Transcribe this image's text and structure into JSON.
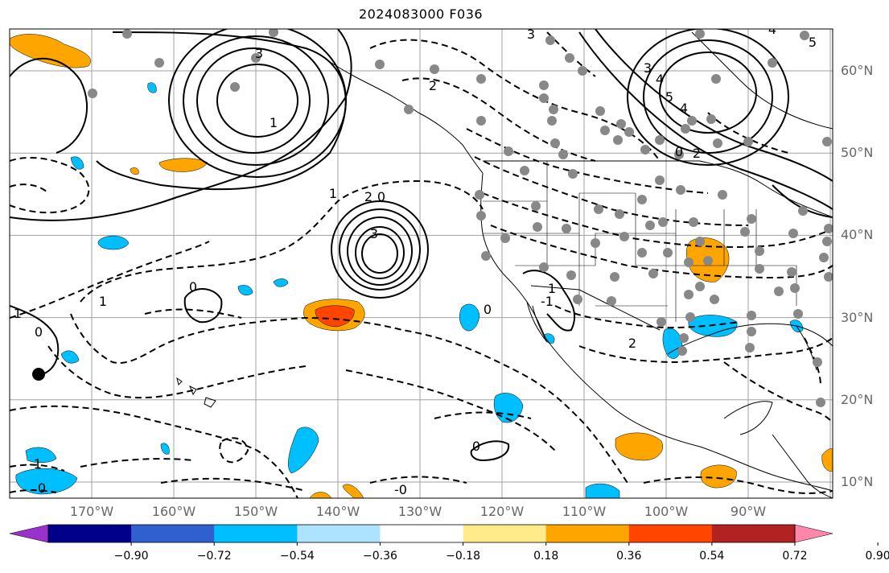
{
  "title": "2024083000 F036",
  "lat_labels": [
    {
      "text": "60°N",
      "lat": 60
    },
    {
      "text": "50°N",
      "lat": 50
    },
    {
      "text": "40°N",
      "lat": 40
    },
    {
      "text": "30°N",
      "lat": 30
    },
    {
      "text": "20°N",
      "lat": 20
    },
    {
      "text": "10°N",
      "lat": 10
    }
  ],
  "lon_labels": [
    {
      "text": "170°W",
      "lon": -170
    },
    {
      "text": "160°W",
      "lon": -160
    },
    {
      "text": "150°W",
      "lon": -150
    },
    {
      "text": "140°W",
      "lon": -140
    },
    {
      "text": "130°W",
      "lon": -130
    },
    {
      "text": "120°W",
      "lon": -120
    },
    {
      "text": "110°W",
      "lon": -110
    },
    {
      "text": "100°W",
      "lon": -100
    },
    {
      "text": "90°W",
      "lon": -90
    }
  ],
  "colorbar": {
    "colors": [
      "#9932cc",
      "#00008b",
      "#3060cf",
      "#00bfff",
      "#aee3ff",
      "#ffffff",
      "#ffeb8a",
      "#ffa500",
      "#ff4500",
      "#b22222",
      "#ff88aa"
    ],
    "labels": [
      "−0.90",
      "−0.72",
      "−0.54",
      "−0.36",
      "−0.18",
      "0.18",
      "0.36",
      "0.54",
      "0.72",
      "0.90"
    ]
  },
  "contour_labels": [
    "3",
    "3",
    "2",
    "0",
    "2",
    "1",
    "0",
    "1",
    "1",
    "0",
    "-1",
    "0",
    "-0",
    "3",
    "4",
    "5",
    "4",
    "2",
    "3",
    "4",
    "5",
    "0",
    "2",
    "1",
    "-1",
    "0",
    "0",
    "2",
    "1"
  ],
  "colors": {
    "grid": "#a0a0a0",
    "contour": "#000000",
    "station": "#888888",
    "positive_fill": "#ffa500",
    "strong_fill": "#ff4500",
    "negative_fill": "#00bfff"
  }
}
